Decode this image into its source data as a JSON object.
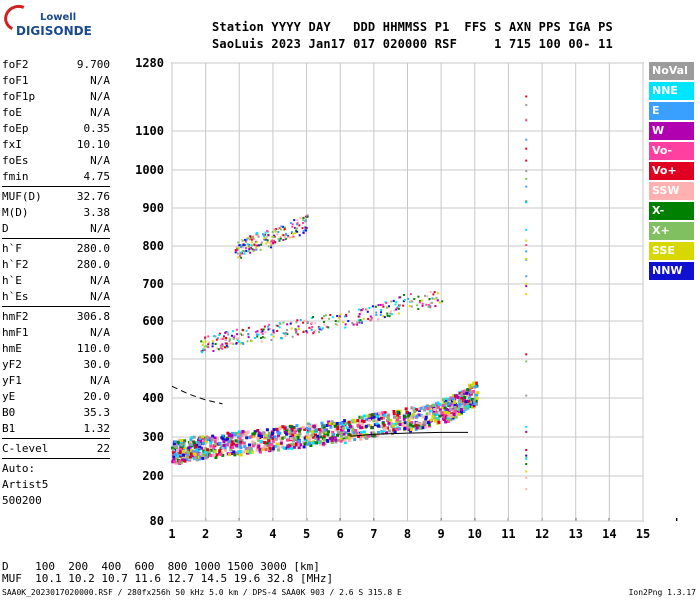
{
  "logo": {
    "top": "Lowell",
    "main": "DIGISONDE"
  },
  "header": {
    "line1": "Station YYYY DAY   DDD HHMMSS P1  FFS S AXN PPS IGA PS",
    "line2": "SaoLuis 2023 Jan17 017 020000 RSF     1 715 100 00- 11"
  },
  "params": {
    "group1": [
      [
        "foF2",
        "9.700"
      ],
      [
        "foF1",
        "N/A"
      ],
      [
        "foF1p",
        "N/A"
      ],
      [
        "foE",
        "N/A"
      ],
      [
        "foEp",
        "0.35"
      ],
      [
        "fxI",
        "10.10"
      ],
      [
        "foEs",
        "N/A"
      ],
      [
        "fmin",
        "4.75"
      ]
    ],
    "group2": [
      [
        "MUF(D)",
        "32.76"
      ],
      [
        "M(D)",
        "3.38"
      ],
      [
        "D",
        "N/A"
      ]
    ],
    "group3": [
      [
        "h`F",
        "280.0"
      ],
      [
        "h`F2",
        "280.0"
      ],
      [
        "h`E",
        "N/A"
      ],
      [
        "h`Es",
        "N/A"
      ]
    ],
    "group4": [
      [
        "hmF2",
        "306.8"
      ],
      [
        "hmF1",
        "N/A"
      ],
      [
        "hmE",
        "110.0"
      ],
      [
        "yF2",
        "30.0"
      ],
      [
        "yF1",
        "N/A"
      ],
      [
        "yE",
        "20.0"
      ],
      [
        "B0",
        "35.3"
      ],
      [
        "B1",
        "1.32"
      ]
    ],
    "group5": [
      [
        "C-level",
        "22"
      ]
    ]
  },
  "auto": [
    "Auto:",
    "Artist5",
    "500200"
  ],
  "legend": [
    {
      "label": "NoVal",
      "color": "#9c9c9c"
    },
    {
      "label": "NNE",
      "color": "#00e5ff"
    },
    {
      "label": "E",
      "color": "#3aa0ff"
    },
    {
      "label": "W",
      "color": "#b000b0"
    },
    {
      "label": "Vo-",
      "color": "#ff40a0"
    },
    {
      "label": "Vo+",
      "color": "#e00020"
    },
    {
      "label": "SSW",
      "color": "#ffb0b0"
    },
    {
      "label": "X-",
      "color": "#008000"
    },
    {
      "label": "X+",
      "color": "#80c060"
    },
    {
      "label": "SSE",
      "color": "#d8d800"
    },
    {
      "label": "NNW",
      "color": "#1010d0"
    }
  ],
  "bottom": {
    "line1": "D    100  200  400  600  800 1000 1500 3000 [km]",
    "line2": "MUF  10.1 10.2 10.7 11.6 12.7 14.5 19.6 32.8 [MHz]"
  },
  "footer": {
    "left": "SAA0K_2023017020000.RSF / 280fx256h 50 kHz 5.0 km / DPS-4 SAA0K 903 / 2.6 S 315.8 E",
    "right": "Ion2Png 1.3.17"
  },
  "chart_data": {
    "type": "scatter",
    "title": "",
    "xlabel": "",
    "ylabel": "",
    "x_ticks": [
      1,
      2,
      3,
      4,
      5,
      6,
      7,
      8,
      9,
      10,
      11,
      12,
      13,
      14,
      15
    ],
    "y_ticks": [
      80,
      200,
      300,
      400,
      500,
      600,
      700,
      800,
      900,
      1000,
      1100,
      1280
    ],
    "xlim": [
      1,
      15
    ],
    "ylim": [
      80,
      1280
    ],
    "y_scale": "piecewise-log",
    "grid": true,
    "legend_position": "right",
    "series": [
      {
        "name": "O-trace F layer",
        "x": [
          1.0,
          1.5,
          2.0,
          3.0,
          4.0,
          5.0,
          6.0,
          7.0,
          8.0,
          9.0,
          9.5,
          10.0
        ],
        "y": [
          245,
          255,
          260,
          270,
          280,
          290,
          300,
          315,
          330,
          350,
          370,
          400
        ]
      },
      {
        "name": "Multihop cluster",
        "x": [
          1.8,
          2.5,
          3.0,
          4.0,
          5.0,
          6.0,
          7.0,
          8.0,
          9.0
        ],
        "y": [
          520,
          540,
          545,
          560,
          575,
          590,
          610,
          640,
          650
        ]
      },
      {
        "name": "High echoes",
        "x": [
          2.9,
          3.2,
          3.5,
          4.0,
          4.5,
          5.0
        ],
        "y": [
          775,
          790,
          800,
          810,
          830,
          850
        ]
      },
      {
        "name": "Vertical column",
        "x": [
          11.5,
          11.5,
          11.5,
          11.5,
          11.5,
          11.5,
          11.5
        ],
        "y": [
          1210,
          1050,
          900,
          750,
          450,
          250,
          100
        ]
      }
    ],
    "profile_line": {
      "x": [
        6.3,
        7.0,
        8.0,
        9.0,
        9.8
      ],
      "y": [
        302,
        307,
        310,
        312,
        312
      ]
    },
    "dashed_line": {
      "x": [
        1.0,
        1.5,
        2.0,
        2.5
      ],
      "y": [
        430,
        410,
        395,
        385
      ]
    }
  }
}
